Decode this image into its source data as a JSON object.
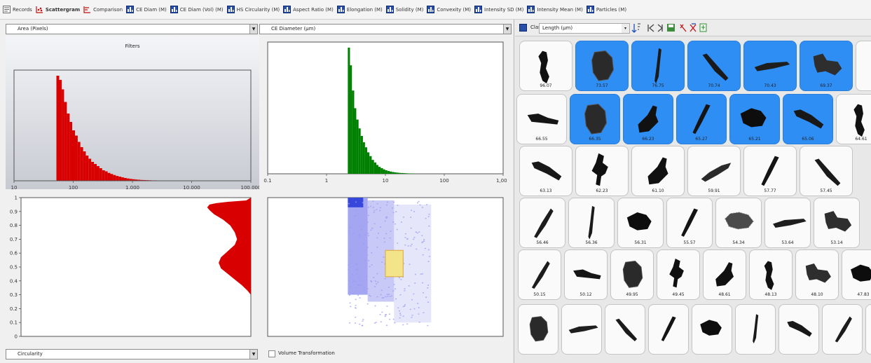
{
  "tabs": [
    {
      "label": "Records",
      "icon": "records-icon",
      "active": false
    },
    {
      "label": "Scattergram",
      "icon": "scattergram-icon",
      "active": true
    },
    {
      "label": "Comparison",
      "icon": "comparison-icon",
      "active": false
    },
    {
      "label": "CE Diam (M)",
      "icon": "histogram-icon",
      "active": false
    },
    {
      "label": "CE Diam (Vol) (M)",
      "icon": "histogram-icon",
      "active": false
    },
    {
      "label": "HS Circularity (M)",
      "icon": "histogram-icon",
      "active": false
    },
    {
      "label": "Aspect Ratio (M)",
      "icon": "histogram-icon",
      "active": false
    },
    {
      "label": "Elongation (M)",
      "icon": "histogram-icon",
      "active": false
    },
    {
      "label": "Solidity (M)",
      "icon": "histogram-icon",
      "active": false
    },
    {
      "label": "Convexity (M)",
      "icon": "histogram-icon",
      "active": false
    },
    {
      "label": "Intensity SD (M)",
      "icon": "histogram-icon",
      "active": false
    },
    {
      "label": "Intensity Mean (M)",
      "icon": "histogram-icon",
      "active": false
    },
    {
      "label": "Particles (M)",
      "icon": "histogram-icon",
      "active": false
    }
  ],
  "left": {
    "x_param": "Area (Pixels)",
    "y_param": "CE Diameter (µm)",
    "bottom_param": "Circularity",
    "volume_transformation": "Volume Transformation",
    "filters_title": "Filters",
    "colors": {
      "red": "#d80000",
      "green": "#008000",
      "scatter": "#9a9cf0",
      "highlight": "#f3e489",
      "panel_bg": "#c8cad2"
    }
  },
  "chart_data": [
    {
      "type": "bar",
      "title": "Filters",
      "x_scale": "log",
      "xlim": [
        10,
        100000
      ],
      "x_ticks": [
        "10",
        "100",
        "1,000",
        "10,000",
        "100,000"
      ],
      "color": "#d80000",
      "bins": [
        {
          "x": 52,
          "y": 1.0
        },
        {
          "x": 58,
          "y": 0.96
        },
        {
          "x": 64,
          "y": 0.87
        },
        {
          "x": 70,
          "y": 0.75
        },
        {
          "x": 78,
          "y": 0.64
        },
        {
          "x": 87,
          "y": 0.56
        },
        {
          "x": 96,
          "y": 0.48
        },
        {
          "x": 107,
          "y": 0.43
        },
        {
          "x": 119,
          "y": 0.37
        },
        {
          "x": 132,
          "y": 0.32
        },
        {
          "x": 147,
          "y": 0.28
        },
        {
          "x": 163,
          "y": 0.24
        },
        {
          "x": 181,
          "y": 0.21
        },
        {
          "x": 201,
          "y": 0.18
        },
        {
          "x": 224,
          "y": 0.16
        },
        {
          "x": 249,
          "y": 0.14
        },
        {
          "x": 277,
          "y": 0.12
        },
        {
          "x": 308,
          "y": 0.1
        },
        {
          "x": 343,
          "y": 0.09
        },
        {
          "x": 381,
          "y": 0.075
        },
        {
          "x": 424,
          "y": 0.065
        },
        {
          "x": 471,
          "y": 0.055
        },
        {
          "x": 524,
          "y": 0.046
        },
        {
          "x": 583,
          "y": 0.04
        },
        {
          "x": 648,
          "y": 0.033
        },
        {
          "x": 720,
          "y": 0.027
        },
        {
          "x": 801,
          "y": 0.022
        },
        {
          "x": 891,
          "y": 0.018
        },
        {
          "x": 991,
          "y": 0.015
        },
        {
          "x": 1102,
          "y": 0.012
        },
        {
          "x": 1225,
          "y": 0.01
        },
        {
          "x": 1362,
          "y": 0.008
        },
        {
          "x": 1515,
          "y": 0.007
        },
        {
          "x": 1684,
          "y": 0.006
        },
        {
          "x": 1873,
          "y": 0.005
        },
        {
          "x": 2083,
          "y": 0.004
        },
        {
          "x": 2316,
          "y": 0.004
        },
        {
          "x": 2575,
          "y": 0.003
        },
        {
          "x": 2863,
          "y": 0.003
        },
        {
          "x": 3184,
          "y": 0.002
        },
        {
          "x": 3541,
          "y": 0.002
        },
        {
          "x": 3937,
          "y": 0.002
        }
      ]
    },
    {
      "type": "bar",
      "x_scale": "log",
      "xlim": [
        0.1,
        1000
      ],
      "x_ticks": [
        "0.1",
        "1",
        "10",
        "100",
        "1,000"
      ],
      "color": "#008000",
      "bins": [
        {
          "x": 2.3,
          "y": 1.0
        },
        {
          "x": 2.5,
          "y": 0.86
        },
        {
          "x": 2.7,
          "y": 0.66
        },
        {
          "x": 2.95,
          "y": 0.52
        },
        {
          "x": 3.2,
          "y": 0.43
        },
        {
          "x": 3.5,
          "y": 0.36
        },
        {
          "x": 3.8,
          "y": 0.3
        },
        {
          "x": 4.15,
          "y": 0.25
        },
        {
          "x": 4.5,
          "y": 0.21
        },
        {
          "x": 4.9,
          "y": 0.17
        },
        {
          "x": 5.35,
          "y": 0.14
        },
        {
          "x": 5.85,
          "y": 0.11
        },
        {
          "x": 6.4,
          "y": 0.09
        },
        {
          "x": 7.0,
          "y": 0.07
        },
        {
          "x": 7.6,
          "y": 0.055
        },
        {
          "x": 8.3,
          "y": 0.045
        },
        {
          "x": 9.1,
          "y": 0.035
        },
        {
          "x": 9.9,
          "y": 0.028
        },
        {
          "x": 10.8,
          "y": 0.022
        },
        {
          "x": 11.8,
          "y": 0.018
        },
        {
          "x": 12.9,
          "y": 0.014
        },
        {
          "x": 14.1,
          "y": 0.011
        },
        {
          "x": 15.4,
          "y": 0.009
        },
        {
          "x": 16.8,
          "y": 0.007
        },
        {
          "x": 18.4,
          "y": 0.006
        },
        {
          "x": 20.1,
          "y": 0.005
        },
        {
          "x": 22.0,
          "y": 0.004
        },
        {
          "x": 24.0,
          "y": 0.003
        },
        {
          "x": 26.2,
          "y": 0.003
        },
        {
          "x": 28.6,
          "y": 0.002
        }
      ]
    },
    {
      "type": "area",
      "ylim": [
        0,
        1
      ],
      "y_ticks": [
        "0",
        "0.1",
        "0.2",
        "0.3",
        "0.4",
        "0.5",
        "0.6",
        "0.7",
        "0.8",
        "0.9",
        "1"
      ],
      "color": "#d80000",
      "profile": [
        {
          "y": 1.0,
          "x": 1.0
        },
        {
          "y": 0.98,
          "x": 0.98
        },
        {
          "y": 0.97,
          "x": 0.9
        },
        {
          "y": 0.96,
          "x": 0.85
        },
        {
          "y": 0.95,
          "x": 0.82
        },
        {
          "y": 0.93,
          "x": 0.81
        },
        {
          "y": 0.91,
          "x": 0.82
        },
        {
          "y": 0.88,
          "x": 0.84
        },
        {
          "y": 0.84,
          "x": 0.88
        },
        {
          "y": 0.8,
          "x": 0.91
        },
        {
          "y": 0.75,
          "x": 0.93
        },
        {
          "y": 0.7,
          "x": 0.94
        },
        {
          "y": 0.66,
          "x": 0.93
        },
        {
          "y": 0.63,
          "x": 0.91
        },
        {
          "y": 0.6,
          "x": 0.89
        },
        {
          "y": 0.57,
          "x": 0.87
        },
        {
          "y": 0.53,
          "x": 0.86
        },
        {
          "y": 0.49,
          "x": 0.87
        },
        {
          "y": 0.45,
          "x": 0.9
        },
        {
          "y": 0.41,
          "x": 0.93
        },
        {
          "y": 0.37,
          "x": 0.96
        },
        {
          "y": 0.33,
          "x": 0.985
        },
        {
          "y": 0.3,
          "x": 1.0
        }
      ]
    },
    {
      "type": "scatter",
      "xlim": [
        0.1,
        1000
      ],
      "ylim": [
        0,
        1
      ],
      "color": "#9a9cf0",
      "density_regions": [
        {
          "x": [
            2.3,
            5.0
          ],
          "y": [
            0.3,
            1.0
          ],
          "level": "dense"
        },
        {
          "x": [
            5.0,
            14.0
          ],
          "y": [
            0.25,
            0.98
          ],
          "level": "medium"
        },
        {
          "x": [
            14.0,
            60.0
          ],
          "y": [
            0.1,
            0.95
          ],
          "level": "sparse"
        }
      ],
      "selection": {
        "x": [
          10.0,
          20.0
        ],
        "y": [
          0.43,
          0.62
        ],
        "color": "#f3e489"
      }
    }
  ],
  "right": {
    "class_label": "Class 1",
    "sort_field": "Length (µm)",
    "toolbar_icons": [
      "class-icon",
      "sort-icon",
      "first-icon",
      "prev-icon",
      "save-icon",
      "tag-icon",
      "untag-icon",
      "export-icon"
    ]
  },
  "thumbnails": [
    [
      {
        "label": "96.07",
        "selected": false,
        "shape": "blobv"
      },
      {
        "label": "73.57",
        "selected": true,
        "shape": "chunk"
      },
      {
        "label": "76.75",
        "selected": true,
        "shape": "rodv"
      },
      {
        "label": "70.74",
        "selected": true,
        "shape": "diag"
      },
      {
        "label": "70.43",
        "selected": true,
        "shape": "rodh"
      },
      {
        "label": "69.37",
        "selected": true,
        "shape": "cluster"
      },
      {
        "label": "",
        "selected": false,
        "shape": "none"
      }
    ],
    [
      {
        "label": "66.55",
        "selected": false,
        "shape": "rodh2"
      },
      {
        "label": "66.35",
        "selected": true,
        "shape": "chunk"
      },
      {
        "label": "66.23",
        "selected": true,
        "shape": "boot"
      },
      {
        "label": "65.27",
        "selected": true,
        "shape": "rodd"
      },
      {
        "label": "65.21",
        "selected": true,
        "shape": "blob"
      },
      {
        "label": "65.06",
        "selected": true,
        "shape": "diag2"
      },
      {
        "label": "64.61",
        "selected": false,
        "shape": "blobv"
      }
    ],
    [
      {
        "label": "63.13",
        "selected": false,
        "shape": "diag2"
      },
      {
        "label": "62.23",
        "selected": false,
        "shape": "crab"
      },
      {
        "label": "61.10",
        "selected": false,
        "shape": "boot"
      },
      {
        "label": "59.91",
        "selected": false,
        "shape": "diag3"
      },
      {
        "label": "57.77",
        "selected": false,
        "shape": "rodd"
      },
      {
        "label": "57.45",
        "selected": false,
        "shape": "diag"
      }
    ],
    [
      {
        "label": "56.46",
        "selected": false,
        "shape": "rodd2"
      },
      {
        "label": "56.36",
        "selected": false,
        "shape": "rodv"
      },
      {
        "label": "56.31",
        "selected": false,
        "shape": "blob"
      },
      {
        "label": "55.57",
        "selected": false,
        "shape": "rodd"
      },
      {
        "label": "54.34",
        "selected": false,
        "shape": "fluff"
      },
      {
        "label": "53.64",
        "selected": false,
        "shape": "rodh"
      },
      {
        "label": "53.14",
        "selected": false,
        "shape": "cluster"
      }
    ],
    [
      {
        "label": "50.15",
        "selected": false,
        "shape": "rodd2"
      },
      {
        "label": "50.12",
        "selected": false,
        "shape": "rodh2"
      },
      {
        "label": "49.95",
        "selected": false,
        "shape": "chunk"
      },
      {
        "label": "49.45",
        "selected": false,
        "shape": "crab"
      },
      {
        "label": "48.61",
        "selected": false,
        "shape": "boot"
      },
      {
        "label": "48.13",
        "selected": false,
        "shape": "blobv"
      },
      {
        "label": "48.10",
        "selected": false,
        "shape": "cluster"
      },
      {
        "label": "47.83",
        "selected": false,
        "shape": "blob"
      }
    ],
    [
      {
        "label": "",
        "selected": false,
        "shape": "chunk"
      },
      {
        "label": "",
        "selected": false,
        "shape": "rodh"
      },
      {
        "label": "",
        "selected": false,
        "shape": "diag"
      },
      {
        "label": "",
        "selected": false,
        "shape": "rodd"
      },
      {
        "label": "",
        "selected": false,
        "shape": "blob"
      },
      {
        "label": "",
        "selected": false,
        "shape": "rodv"
      },
      {
        "label": "",
        "selected": false,
        "shape": "diag2"
      },
      {
        "label": "",
        "selected": false,
        "shape": "rodd2"
      },
      {
        "label": "",
        "selected": false,
        "shape": "blob"
      }
    ]
  ]
}
